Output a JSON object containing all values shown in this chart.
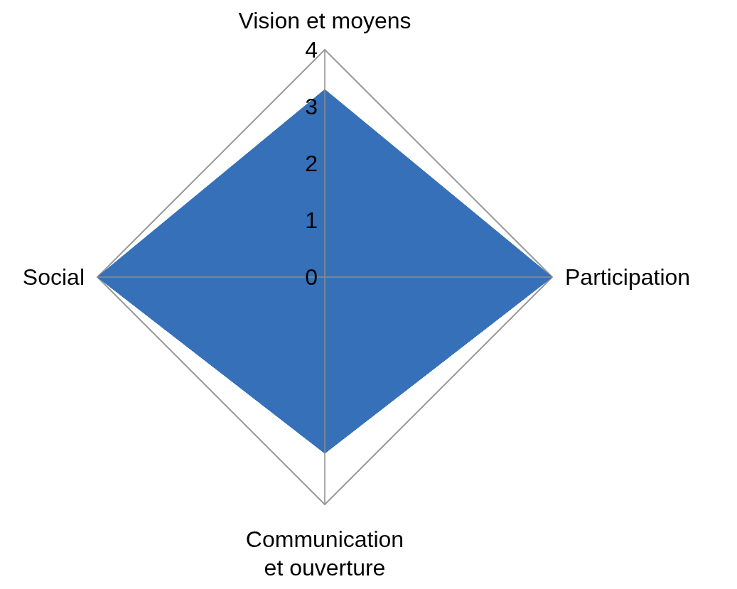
{
  "chart_data": {
    "type": "radar",
    "categories": [
      "Vision et moyens",
      "Participation",
      "Communication et ouverture",
      "Social"
    ],
    "series": [
      {
        "color": "#3570b8",
        "values": [
          3.3,
          4,
          3.1,
          4
        ]
      }
    ],
    "ylim": [
      0,
      4
    ],
    "yticks": [
      0,
      1,
      2,
      3,
      4
    ]
  }
}
